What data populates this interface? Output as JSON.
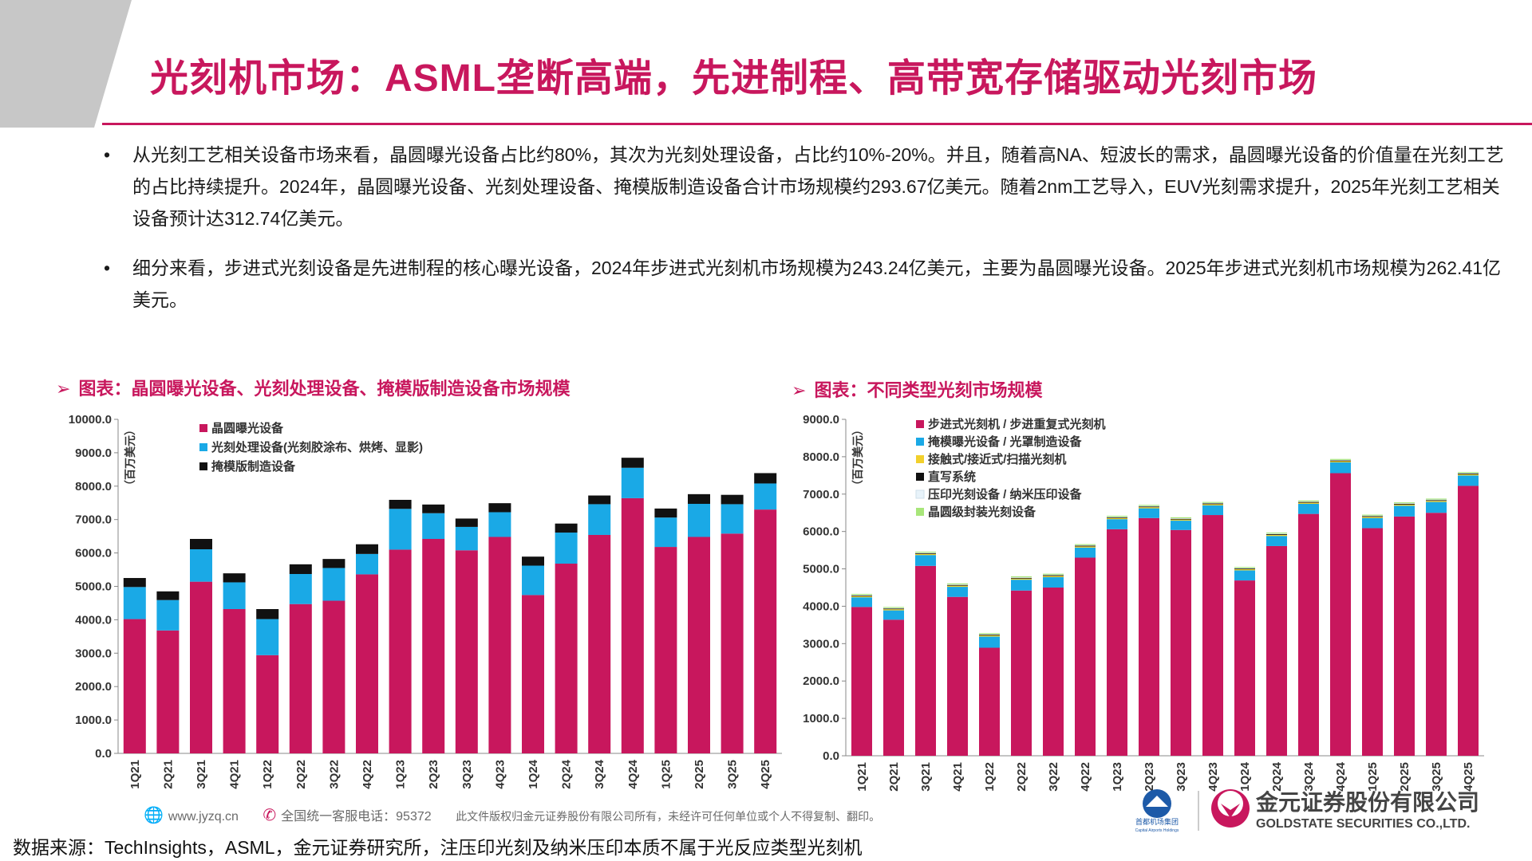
{
  "slide": {
    "title": "光刻机市场：ASML垄断高端，先进制程、高带宽存储驱动光刻市场",
    "accent_color": "#c8175d",
    "bullets": [
      "从光刻工艺相关设备市场来看，晶圆曝光设备占比约80%，其次为光刻处理设备，占比约10%-20%。并且，随着高NA、短波长的需求，晶圆曝光设备的价值量在光刻工艺的占比持续提升。2024年，晶圆曝光设备、光刻处理设备、掩模版制造设备合计市场规模约293.67亿美元。随着2nm工艺导入，EUV光刻需求提升，2025年光刻工艺相关设备预计达312.74亿美元。",
      "细分来看，步进式光刻设备是先进制程的核心曝光设备，2024年步进式光刻机市场规模为243.24亿美元，主要为晶圆曝光设备。2025年步进式光刻机市场规模为262.41亿美元。"
    ],
    "bullet_symbol": "•",
    "arrow_symbol": "➢",
    "footer": {
      "website_icon": "globe-icon",
      "website": "www.jyzq.cn",
      "hotline_icon": "phone-icon",
      "hotline": "全国统一客服电话：95372",
      "notice": "此文件版权归金元证券股份有限公司所有，未经许可任何单位或个人不得复制、翻印。"
    },
    "source": "数据来源：TechInsights，ASML，金元证券研究所，注压印光刻及纳米压印本质不属于光反应类型光刻机",
    "logo": {
      "group_name": "首都机场集团",
      "group_name_en": "Capital Airports Holdings",
      "company_cn": "金元证券股份有限公司",
      "company_en": "GOLDSTATE SECURITIES CO.,LTD."
    }
  },
  "chart_data": [
    {
      "type": "bar",
      "stacked": true,
      "title": "图表：晶圆曝光设备、光刻处理设备、掩模版制造设备市场规模",
      "ylabel": "（百万美元）",
      "ylim": [
        0,
        10000
      ],
      "yticks": [
        "0.0",
        "1000.0",
        "2000.0",
        "3000.0",
        "4000.0",
        "5000.0",
        "6000.0",
        "7000.0",
        "8000.0",
        "9000.0",
        "10000.0"
      ],
      "categories": [
        "1Q21",
        "2Q21",
        "3Q21",
        "4Q21",
        "1Q22",
        "2Q22",
        "3Q22",
        "4Q22",
        "1Q23",
        "2Q23",
        "3Q23",
        "4Q23",
        "1Q24",
        "2Q24",
        "3Q24",
        "4Q24",
        "1Q25",
        "2Q25",
        "3Q25",
        "4Q25"
      ],
      "legend_position": "top-left",
      "series": [
        {
          "name": "晶圆曝光设备",
          "color": "#c8175d",
          "values": [
            4020,
            3680,
            5140,
            4320,
            2940,
            4470,
            4570,
            5360,
            6100,
            6420,
            6080,
            6480,
            4740,
            5680,
            6540,
            7640,
            6180,
            6480,
            6580,
            7300
          ]
        },
        {
          "name": "光刻处理设备(光刻胶涂布、烘烤、显影)",
          "color": "#1aa9e6",
          "values": [
            960,
            910,
            970,
            800,
            1080,
            900,
            980,
            610,
            1220,
            770,
            700,
            740,
            880,
            930,
            920,
            910,
            880,
            990,
            880,
            780
          ]
        },
        {
          "name": "掩模版制造设备",
          "color": "#111111",
          "values": [
            270,
            260,
            310,
            270,
            300,
            290,
            270,
            290,
            270,
            260,
            250,
            270,
            270,
            270,
            260,
            300,
            270,
            290,
            280,
            310
          ]
        }
      ]
    },
    {
      "type": "bar",
      "stacked": true,
      "title": "图表：不同类型光刻市场规模",
      "ylabel": "（百万美元）",
      "ylim": [
        0,
        9000
      ],
      "yticks": [
        "0.0",
        "1000.0",
        "2000.0",
        "3000.0",
        "4000.0",
        "5000.0",
        "6000.0",
        "7000.0",
        "8000.0",
        "9000.0"
      ],
      "categories": [
        "1Q21",
        "2Q21",
        "3Q21",
        "4Q21",
        "1Q22",
        "2Q22",
        "3Q22",
        "4Q22",
        "1Q23",
        "2Q23",
        "3Q23",
        "4Q23",
        "1Q24",
        "2Q24",
        "3Q24",
        "4Q24",
        "1Q25",
        "2Q25",
        "3Q25",
        "4Q25"
      ],
      "legend_position": "top-left",
      "series": [
        {
          "name": "步进式光刻机 / 步进重复式光刻机",
          "color": "#c8175d",
          "values": [
            3980,
            3640,
            5080,
            4250,
            2890,
            4420,
            4500,
            5300,
            6060,
            6360,
            6040,
            6440,
            4690,
            5610,
            6470,
            7560,
            6090,
            6400,
            6500,
            7220
          ]
        },
        {
          "name": "掩模曝光设备 / 光罩制造设备",
          "color": "#1aa9e6",
          "values": [
            260,
            250,
            290,
            270,
            300,
            290,
            280,
            270,
            270,
            260,
            250,
            260,
            270,
            270,
            270,
            290,
            270,
            290,
            290,
            280
          ]
        },
        {
          "name": "接触式/接近式/扫描光刻机",
          "color": "#f2d02c",
          "values": [
            30,
            30,
            30,
            30,
            30,
            30,
            30,
            30,
            30,
            30,
            30,
            30,
            30,
            30,
            30,
            30,
            30,
            30,
            30,
            30
          ]
        },
        {
          "name": "直写系统",
          "color": "#111111",
          "values": [
            20,
            20,
            20,
            20,
            20,
            20,
            20,
            20,
            20,
            20,
            20,
            20,
            20,
            20,
            20,
            20,
            20,
            20,
            20,
            20
          ]
        },
        {
          "name": "压印光刻设备 / 纳米压印设备",
          "color": "#e8f3fa",
          "values": [
            15,
            15,
            15,
            15,
            15,
            15,
            15,
            15,
            15,
            15,
            15,
            15,
            15,
            15,
            15,
            15,
            15,
            15,
            15,
            15
          ]
        },
        {
          "name": "晶圆级封装光刻设备",
          "color": "#a8e67a",
          "values": [
            25,
            25,
            25,
            25,
            25,
            25,
            25,
            25,
            25,
            25,
            25,
            25,
            25,
            25,
            25,
            25,
            25,
            25,
            25,
            25
          ]
        }
      ]
    }
  ]
}
